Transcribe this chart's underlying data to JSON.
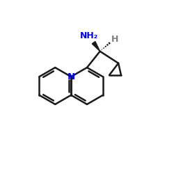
{
  "bg_color": "#ffffff",
  "bond_color": "#1a1a1a",
  "N_color": "#0000ee",
  "H_color": "#808080",
  "line_width": 1.8,
  "fig_size": [
    2.5,
    2.5
  ],
  "dpi": 100,
  "xlim": [
    -0.5,
    7.5
  ],
  "ylim": [
    -0.5,
    6.0
  ]
}
